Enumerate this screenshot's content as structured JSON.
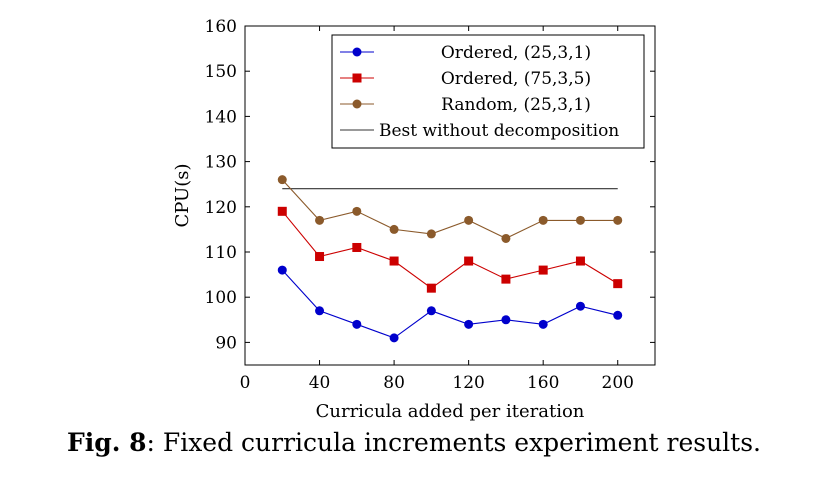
{
  "chart_data": {
    "type": "line",
    "title": "",
    "xlabel": "Curricula added per iteration",
    "ylabel": "CPU(s)",
    "xlim": [
      0,
      220
    ],
    "ylim": [
      85,
      160
    ],
    "xticks": [
      0,
      40,
      80,
      120,
      160,
      200
    ],
    "yticks": [
      90,
      100,
      110,
      120,
      130,
      140,
      150,
      160
    ],
    "x": [
      20,
      40,
      60,
      80,
      100,
      120,
      140,
      160,
      180,
      200
    ],
    "series": [
      {
        "name": "Ordered, (25,3,1)",
        "color": "#0000cc",
        "marker": "circle",
        "values": [
          106,
          97,
          94,
          91,
          97,
          94,
          95,
          94,
          98,
          96
        ]
      },
      {
        "name": "Ordered, (75,3,5)",
        "color": "#cc0000",
        "marker": "square",
        "values": [
          119,
          109,
          111,
          108,
          102,
          108,
          104,
          106,
          108,
          103
        ]
      },
      {
        "name": "Random, (25,3,1)",
        "color": "#8b5a2b",
        "marker": "circle",
        "values": [
          126,
          117,
          119,
          115,
          114,
          117,
          113,
          117,
          117,
          117
        ]
      }
    ],
    "reference_line": {
      "name": "Best without decomposition",
      "color": "#333333",
      "x": [
        20,
        200
      ],
      "y": 124
    },
    "legend_position": "top-right",
    "grid": false
  },
  "caption": {
    "label": "Fig. 8",
    "text": ": Fixed curricula increments experiment results."
  }
}
